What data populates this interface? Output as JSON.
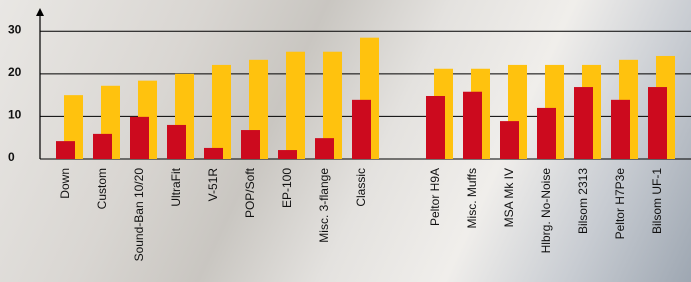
{
  "chart_data": {
    "type": "bar",
    "categories": [
      "Down",
      "Custom",
      "Sound-Ban 10/20",
      "UltraFit",
      "V-51R",
      "POP/Soft",
      "EP-100",
      "Misc. 3-flange",
      "Classic",
      null,
      "Peltor H9A",
      "Misc. Muffs",
      "MSA Mk IV",
      "Hlbrg. No-Noise",
      "Bilsom 2313",
      "Peltor H7P3e",
      "Bilsom UF-1"
    ],
    "series": [
      {
        "color": "#ffc20e",
        "values": [
          15,
          17.2,
          18.4,
          20,
          22.1,
          23.3,
          25.2,
          25.2,
          28.5,
          null,
          21.2,
          21.2,
          22.1,
          22.1,
          22.1,
          23.3,
          24.2
        ]
      },
      {
        "color": "#cc0a1e",
        "values": [
          4.2,
          5.9,
          9.9,
          8,
          2.6,
          6.8,
          2.1,
          4.9,
          13.9,
          null,
          14.8,
          15.8,
          8.9,
          12,
          16.9,
          13.9,
          16.9
        ]
      }
    ],
    "ylim": [
      0,
      35
    ],
    "yticks": [
      0,
      10,
      20,
      30
    ],
    "grid": true
  }
}
